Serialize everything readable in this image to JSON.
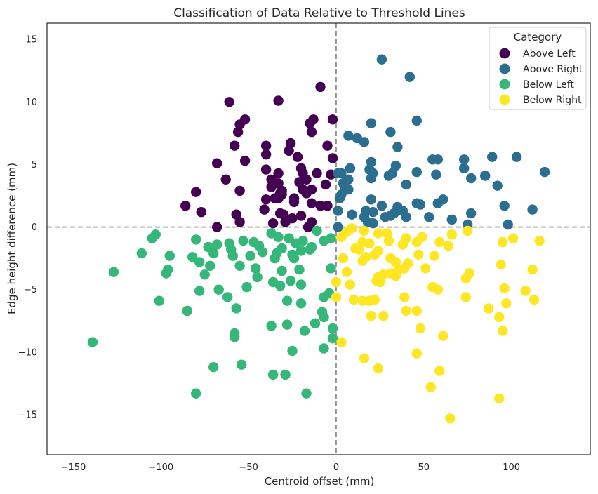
{
  "chart_data": {
    "type": "scatter",
    "title": "Classification of Data Relative to Threshold Lines",
    "xlabel": "Centroid offset (mm)",
    "ylabel": "Edge height difference (mm)",
    "xlim": [
      -165,
      145
    ],
    "ylim": [
      -18.2,
      16.3
    ],
    "xticks": [
      -150,
      -100,
      -50,
      0,
      50,
      100
    ],
    "yticks": [
      -15,
      -10,
      -5,
      0,
      5,
      10,
      15
    ],
    "thresholds": {
      "x": 0,
      "y": 0
    },
    "grid": false,
    "legend": {
      "title": "Category",
      "placement": "top-right"
    },
    "series": [
      {
        "name": "Above Left",
        "color": "#440154",
        "points": [
          [
            -61,
            10.0
          ],
          [
            -33,
            10.1
          ],
          [
            -9,
            11.2
          ],
          [
            -55,
            8.2
          ],
          [
            -52,
            8.6
          ],
          [
            -56,
            7.6
          ],
          [
            -15,
            8.3
          ],
          [
            -13,
            8.6
          ],
          [
            -14,
            7.6
          ],
          [
            -2,
            8.6
          ],
          [
            -58,
            6.5
          ],
          [
            -40,
            6.5
          ],
          [
            -40,
            5.8
          ],
          [
            -26,
            6.7
          ],
          [
            -27,
            6.1
          ],
          [
            -22,
            5.6
          ],
          [
            -5,
            6.5
          ],
          [
            -2,
            5.5
          ],
          [
            -68,
            5.1
          ],
          [
            -52,
            5.3
          ],
          [
            -40,
            4.6
          ],
          [
            -33,
            4.3
          ],
          [
            -20,
            4.7
          ],
          [
            -19,
            4.3
          ],
          [
            -11,
            4.3
          ],
          [
            -3,
            4.2
          ],
          [
            -63,
            3.8
          ],
          [
            -37,
            3.8
          ],
          [
            -33,
            3.5
          ],
          [
            -17,
            3.8
          ],
          [
            -21,
            3.6
          ],
          [
            -6,
            3.4
          ],
          [
            -80,
            2.8
          ],
          [
            -55,
            2.9
          ],
          [
            -37,
            3.2
          ],
          [
            -32,
            2.7
          ],
          [
            -31,
            2.9
          ],
          [
            -24,
            2.0
          ],
          [
            -24,
            2.3
          ],
          [
            -17,
            2.7
          ],
          [
            -19,
            3.0
          ],
          [
            -14,
            3.0
          ],
          [
            -31,
            2.6
          ],
          [
            -35,
            2.3
          ],
          [
            -40,
            2.2
          ],
          [
            -33,
            2.3
          ],
          [
            -86,
            1.7
          ],
          [
            -77,
            1.2
          ],
          [
            -57,
            1.0
          ],
          [
            -41,
            1.4
          ],
          [
            -32,
            1.1
          ],
          [
            -30,
            1.0
          ],
          [
            -25,
            0.7
          ],
          [
            -20,
            0.9
          ],
          [
            -14,
            1.9
          ],
          [
            -9,
            1.7
          ],
          [
            -5,
            1.7
          ],
          [
            -55,
            0.4
          ],
          [
            -36,
            0.3
          ],
          [
            -29,
            0.4
          ],
          [
            -14,
            0.4
          ],
          [
            -16,
            0.0
          ],
          [
            -68,
            0.0
          ]
        ]
      },
      {
        "name": "Above Right",
        "color": "#2c6e8f",
        "points": [
          [
            26,
            13.4
          ],
          [
            42,
            12.0
          ],
          [
            46,
            8.5
          ],
          [
            20,
            8.3
          ],
          [
            31,
            7.6
          ],
          [
            7,
            7.3
          ],
          [
            12,
            7.1
          ],
          [
            16,
            6.8
          ],
          [
            35,
            6.4
          ],
          [
            20,
            5.2
          ],
          [
            55,
            5.4
          ],
          [
            58,
            5.4
          ],
          [
            73,
            5.4
          ],
          [
            89,
            5.6
          ],
          [
            103,
            5.6
          ],
          [
            34,
            4.9
          ],
          [
            19,
            4.6
          ],
          [
            8,
            4.7
          ],
          [
            3,
            4.3
          ],
          [
            21,
            4.3
          ],
          [
            32,
            4.3
          ],
          [
            30,
            4.1
          ],
          [
            46,
            4.4
          ],
          [
            57,
            4.2
          ],
          [
            73,
            4.7
          ],
          [
            85,
            4.1
          ],
          [
            119,
            4.4
          ],
          [
            1,
            4.3
          ],
          [
            7,
            3.8
          ],
          [
            20,
            3.9
          ],
          [
            4,
            3.5
          ],
          [
            40,
            3.4
          ],
          [
            77,
            3.9
          ],
          [
            92,
            3.3
          ],
          [
            5,
            3.0
          ],
          [
            7,
            3.0
          ],
          [
            3,
            2.6
          ],
          [
            2,
            2.3
          ],
          [
            61,
            2.2
          ],
          [
            58,
            1.9
          ],
          [
            20,
            2.2
          ],
          [
            26,
            1.7
          ],
          [
            35,
            1.6
          ],
          [
            46,
            1.9
          ],
          [
            48,
            1.8
          ],
          [
            96,
            1.7
          ],
          [
            112,
            1.4
          ],
          [
            1,
            1.3
          ],
          [
            9,
            1.0
          ],
          [
            17,
            1.3
          ],
          [
            21,
            1.2
          ],
          [
            35,
            1.3
          ],
          [
            38,
            1.3
          ],
          [
            33,
            1.1
          ],
          [
            16,
            0.8
          ],
          [
            28,
            0.8
          ],
          [
            31,
            0.9
          ],
          [
            40,
            0.8
          ],
          [
            53,
            0.8
          ],
          [
            66,
            0.6
          ],
          [
            77,
            1.1
          ],
          [
            18,
            0.4
          ],
          [
            21,
            0.3
          ],
          [
            75,
            0.2
          ],
          [
            98,
            0.2
          ],
          [
            1,
            0.0
          ]
        ]
      },
      {
        "name": "Below Left",
        "color": "#35b779",
        "points": [
          [
            -103,
            -0.6
          ],
          [
            -105,
            -0.9
          ],
          [
            -80,
            -1.0
          ],
          [
            -68,
            -1.4
          ],
          [
            -61,
            -1.3
          ],
          [
            -53,
            -1.1
          ],
          [
            -47,
            -1.2
          ],
          [
            -44,
            -1.5
          ],
          [
            -37,
            -0.5
          ],
          [
            -33,
            -0.8
          ],
          [
            -27,
            -0.9
          ],
          [
            -23,
            -1.3
          ],
          [
            -19,
            -1.1
          ],
          [
            -14,
            -1.6
          ],
          [
            -11,
            -0.3
          ],
          [
            -7,
            -1.1
          ],
          [
            -3,
            -0.9
          ],
          [
            -111,
            -2.1
          ],
          [
            -95,
            -2.3
          ],
          [
            -82,
            -2.4
          ],
          [
            -73,
            -1.6
          ],
          [
            -70,
            -2.1
          ],
          [
            -60,
            -1.8
          ],
          [
            -49,
            -2.3
          ],
          [
            -42,
            -2.0
          ],
          [
            -34,
            -2.1
          ],
          [
            -31,
            -1.7
          ],
          [
            -25,
            -2.2
          ],
          [
            -20,
            -1.9
          ],
          [
            -15,
            -1.8
          ],
          [
            -127,
            -3.6
          ],
          [
            -97,
            -3.7
          ],
          [
            -96,
            -3.4
          ],
          [
            -78,
            -2.8
          ],
          [
            -75,
            -3.8
          ],
          [
            -72,
            -3.1
          ],
          [
            -59,
            -2.3
          ],
          [
            -55,
            -3.1
          ],
          [
            -46,
            -3.3
          ],
          [
            -35,
            -2.5
          ],
          [
            -31,
            -3.5
          ],
          [
            -24,
            -2.5
          ],
          [
            -21,
            -3.4
          ],
          [
            -78,
            -5.1
          ],
          [
            -67,
            -5.0
          ],
          [
            -62,
            -5.6
          ],
          [
            -51,
            -4.8
          ],
          [
            -45,
            -4.0
          ],
          [
            -36,
            -4.4
          ],
          [
            -32,
            -4.7
          ],
          [
            -26,
            -4.3
          ],
          [
            -20,
            -4.6
          ],
          [
            -7,
            -5.6
          ],
          [
            -101,
            -5.9
          ],
          [
            -85,
            -6.7
          ],
          [
            -57,
            -6.5
          ],
          [
            -28,
            -5.9
          ],
          [
            -20,
            -6.1
          ],
          [
            -8,
            -6.8
          ],
          [
            -4,
            -5.3
          ],
          [
            -7,
            -7.2
          ],
          [
            -58,
            -8.5
          ],
          [
            -58,
            -8.8
          ],
          [
            -37,
            -7.9
          ],
          [
            -28,
            -7.8
          ],
          [
            -12,
            -7.7
          ],
          [
            -18,
            -8.3
          ],
          [
            -2,
            -8.1
          ],
          [
            -2,
            -8.9
          ],
          [
            -139,
            -9.2
          ],
          [
            -7,
            -9.7
          ],
          [
            -25,
            -9.9
          ],
          [
            -70,
            -11.2
          ],
          [
            -54,
            -11.0
          ],
          [
            -36,
            -11.8
          ],
          [
            -29,
            -11.8
          ],
          [
            -80,
            -13.3
          ],
          [
            -17,
            -13.3
          ],
          [
            -3,
            -3.3
          ]
        ]
      },
      {
        "name": "Below Right",
        "color": "#fde725",
        "points": [
          [
            6,
            -0.4
          ],
          [
            9,
            -0.1
          ],
          [
            16,
            -0.3
          ],
          [
            24,
            -0.5
          ],
          [
            29,
            -0.5
          ],
          [
            40,
            -0.9
          ],
          [
            49,
            -0.8
          ],
          [
            66,
            -0.6
          ],
          [
            75,
            -0.3
          ],
          [
            101,
            -0.9
          ],
          [
            116,
            -1.1
          ],
          [
            3,
            -0.8
          ],
          [
            13,
            -1.8
          ],
          [
            15,
            -1.2
          ],
          [
            19,
            -1.3
          ],
          [
            24,
            -1.9
          ],
          [
            30,
            -1.1
          ],
          [
            38,
            -1.4
          ],
          [
            46,
            -1.2
          ],
          [
            59,
            -1.2
          ],
          [
            64,
            -1.5
          ],
          [
            95,
            -1.2
          ],
          [
            4,
            -2.5
          ],
          [
            15,
            -2.7
          ],
          [
            17,
            -2.4
          ],
          [
            22,
            -2.2
          ],
          [
            31,
            -2.5
          ],
          [
            34,
            -2.8
          ],
          [
            41,
            -2.9
          ],
          [
            47,
            -2.2
          ],
          [
            56,
            -2.3
          ],
          [
            6,
            -3.6
          ],
          [
            27,
            -3.8
          ],
          [
            31,
            -3.7
          ],
          [
            34,
            -3.9
          ],
          [
            36,
            -3.4
          ],
          [
            39,
            -3.3
          ],
          [
            51,
            -3.3
          ],
          [
            74,
            -4.1
          ],
          [
            76,
            -3.7
          ],
          [
            94,
            -3.0
          ],
          [
            112,
            -3.4
          ],
          [
            0,
            -4.4
          ],
          [
            8,
            -4.6
          ],
          [
            10,
            -5.8
          ],
          [
            23,
            -4.3
          ],
          [
            24,
            -4.0
          ],
          [
            25,
            -4.4
          ],
          [
            55,
            -4.8
          ],
          [
            58,
            -5.0
          ],
          [
            96,
            -4.9
          ],
          [
            108,
            -5.1
          ],
          [
            0,
            -5.6
          ],
          [
            15,
            -5.9
          ],
          [
            19,
            -5.9
          ],
          [
            22,
            -5.8
          ],
          [
            39,
            -5.6
          ],
          [
            40,
            -6.7
          ],
          [
            46,
            -6.7
          ],
          [
            74,
            -5.6
          ],
          [
            87,
            -6.5
          ],
          [
            97,
            -6.1
          ],
          [
            113,
            -5.8
          ],
          [
            20,
            -7.1
          ],
          [
            27,
            -7.1
          ],
          [
            48,
            -8.1
          ],
          [
            61,
            -8.7
          ],
          [
            93,
            -7.2
          ],
          [
            95,
            -8.3
          ],
          [
            3,
            -9.2
          ],
          [
            16,
            -10.5
          ],
          [
            24,
            -11.3
          ],
          [
            46,
            -10.1
          ],
          [
            59,
            -11.5
          ],
          [
            54,
            -12.8
          ],
          [
            93,
            -13.7
          ],
          [
            65,
            -15.3
          ],
          [
            11,
            -1.7
          ]
        ]
      }
    ]
  }
}
